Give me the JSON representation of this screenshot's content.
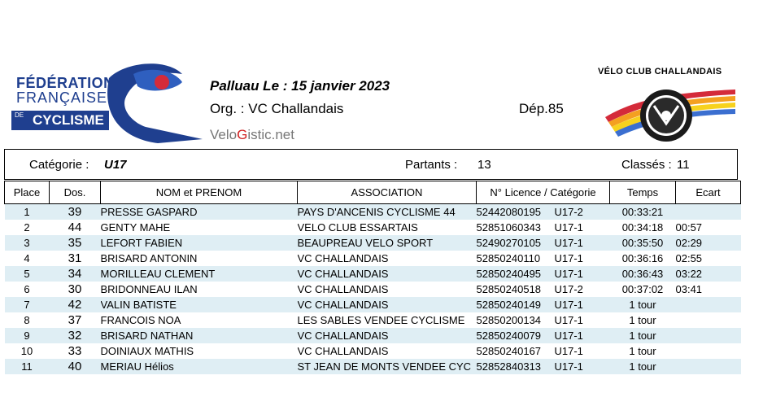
{
  "ffc_logo": {
    "line1": "FÉDÉRATION",
    "line2": "FRANÇAISE",
    "de": "DE",
    "line3": "CYCLISME"
  },
  "event": {
    "place_date": "Palluau  Le :  15 janvier 2023",
    "org": "Org. :  VC Challandais",
    "dep": "Dép.85",
    "site_prefix": "Velo",
    "site_g": "G",
    "site_suffix": "istic.net"
  },
  "club": {
    "title": "VÉLO CLUB CHALLANDAIS"
  },
  "category": {
    "label": "Catégorie :",
    "value": "U17",
    "partants_label": "Partants :",
    "partants_value": "13",
    "classes_label": "Classés :",
    "classes_value": "11"
  },
  "table": {
    "headers": [
      "Place",
      "Dos.",
      "NOM et PRENOM",
      "ASSOCIATION",
      "N° Licence / Catégorie",
      "Temps",
      "Ecart"
    ],
    "rows": [
      {
        "place": "1",
        "dos": "39",
        "name": "PRESSE   GASPARD",
        "assoc": "PAYS D'ANCENIS CYCLISME 44",
        "licence": "52442080195",
        "cat": "U17-2",
        "time": "00:33:21",
        "ecart": ""
      },
      {
        "place": "2",
        "dos": "44",
        "name": "GENTY   MAHE",
        "assoc": "VELO CLUB ESSARTAIS",
        "licence": "52851060343",
        "cat": "U17-1",
        "time": "00:34:18",
        "ecart": "00:57"
      },
      {
        "place": "3",
        "dos": "35",
        "name": "LEFORT   FABIEN",
        "assoc": "BEAUPREAU VELO SPORT",
        "licence": "52490270105",
        "cat": "U17-1",
        "time": "00:35:50",
        "ecart": "02:29"
      },
      {
        "place": "4",
        "dos": "31",
        "name": "BRISARD   ANTONIN",
        "assoc": "VC CHALLANDAIS",
        "licence": "52850240110",
        "cat": "U17-1",
        "time": "00:36:16",
        "ecart": "02:55"
      },
      {
        "place": "5",
        "dos": "34",
        "name": "MORILLEAU   CLEMENT",
        "assoc": "VC CHALLANDAIS",
        "licence": "52850240495",
        "cat": "U17-1",
        "time": "00:36:43",
        "ecart": "03:22"
      },
      {
        "place": "6",
        "dos": "30",
        "name": "BRIDONNEAU   ILAN",
        "assoc": "VC CHALLANDAIS",
        "licence": "52850240518",
        "cat": "U17-2",
        "time": "00:37:02",
        "ecart": "03:41"
      },
      {
        "place": "7",
        "dos": "42",
        "name": "VALIN   BATISTE",
        "assoc": "VC CHALLANDAIS",
        "licence": "52850240149",
        "cat": "U17-1",
        "time": "1 tour",
        "ecart": ""
      },
      {
        "place": "8",
        "dos": "37",
        "name": "FRANCOIS   NOA",
        "assoc": "LES SABLES VENDEE CYCLISME",
        "licence": "52850200134",
        "cat": "U17-1",
        "time": "1 tour",
        "ecart": ""
      },
      {
        "place": "9",
        "dos": "32",
        "name": "BRISARD   NATHAN",
        "assoc": "VC CHALLANDAIS",
        "licence": "52850240079",
        "cat": "U17-1",
        "time": "1 tour",
        "ecart": ""
      },
      {
        "place": "10",
        "dos": "33",
        "name": "DOINIAUX   MATHIS",
        "assoc": "VC CHALLANDAIS",
        "licence": "52850240167",
        "cat": "U17-1",
        "time": "1 tour",
        "ecart": ""
      },
      {
        "place": "11",
        "dos": "40",
        "name": "MERIAU   Hélios",
        "assoc": "ST JEAN DE MONTS VENDEE CYC",
        "licence": "52852840313",
        "cat": "U17-1",
        "time": "1 tour",
        "ecart": ""
      }
    ]
  },
  "colors": {
    "ffc_blue": "#1f3f8f",
    "row_alt": "#dfeef4",
    "swoosh_red": "#d42b3a"
  }
}
